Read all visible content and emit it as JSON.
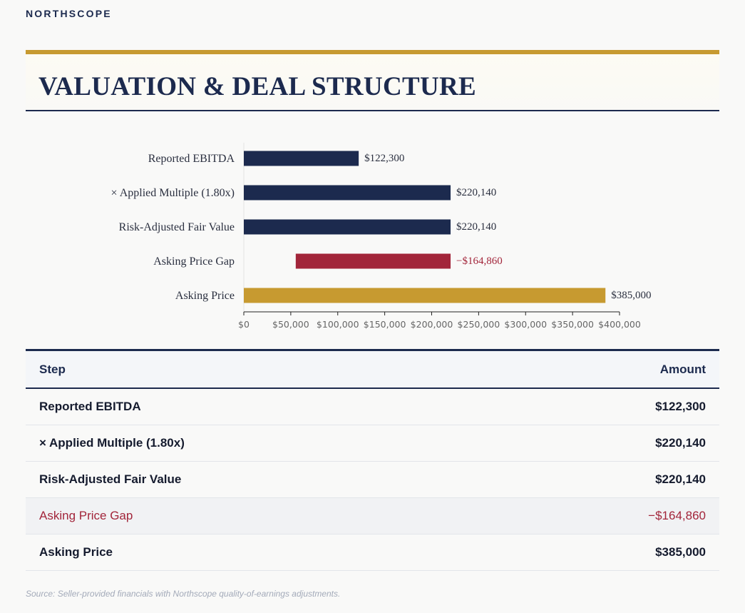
{
  "brand": "NORTHSCOPE",
  "title": "VALUATION & DEAL STRUCTURE",
  "colors": {
    "navy": "#1c2a4e",
    "gold": "#c79a30",
    "red": "#a2253a"
  },
  "chart_data": {
    "type": "bar",
    "orientation": "horizontal",
    "waterfall": true,
    "categories": [
      "Reported EBITDA",
      "× Applied Multiple (1.80x)",
      "Risk-Adjusted Fair Value",
      "Asking Price Gap",
      "Asking Price"
    ],
    "bars": [
      {
        "label": "Reported EBITDA",
        "start": 0,
        "end": 122300,
        "value_label": "$122,300",
        "color": "#1c2a4e"
      },
      {
        "label": "× Applied Multiple (1.80x)",
        "start": 0,
        "end": 220140,
        "value_label": "$220,140",
        "color": "#1c2a4e"
      },
      {
        "label": "Risk-Adjusted Fair Value",
        "start": 0,
        "end": 220140,
        "value_label": "$220,140",
        "color": "#1c2a4e"
      },
      {
        "label": "Asking Price Gap",
        "start": 55280,
        "end": 220140,
        "value_label": "−$164,860",
        "color": "#a2253a"
      },
      {
        "label": "Asking Price",
        "start": 0,
        "end": 385000,
        "value_label": "$385,000",
        "color": "#c79a30"
      }
    ],
    "xlim": [
      0,
      400000
    ],
    "xticks": [
      0,
      50000,
      100000,
      150000,
      200000,
      250000,
      300000,
      350000,
      400000
    ],
    "xtick_labels": [
      "$0",
      "$50,000",
      "$100,000",
      "$150,000",
      "$200,000",
      "$250,000",
      "$300,000",
      "$350,000",
      "$400,000"
    ],
    "grid": false,
    "legend": "none"
  },
  "table": {
    "headers": {
      "step": "Step",
      "amount": "Amount"
    },
    "rows": [
      {
        "step": "Reported EBITDA",
        "amount": "$122,300"
      },
      {
        "step": "× Applied Multiple (1.80x)",
        "amount": "$220,140"
      },
      {
        "step": "Risk-Adjusted Fair Value",
        "amount": "$220,140"
      },
      {
        "step": "Asking Price Gap",
        "amount": "−$164,860"
      },
      {
        "step": "Asking Price",
        "amount": "$385,000"
      }
    ]
  },
  "source": "Source: Seller-provided financials with Northscope quality-of-earnings adjustments."
}
